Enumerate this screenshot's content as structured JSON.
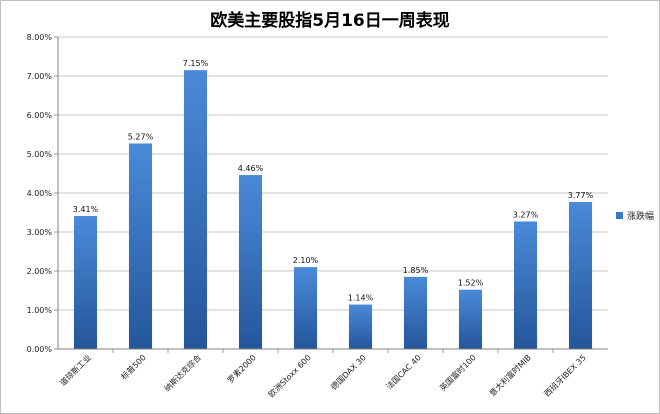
{
  "chart_data": {
    "type": "bar",
    "title": "欧美主要股指5月16日一周表现",
    "categories": [
      "道琼斯工业",
      "标普500",
      "纳斯达克综合",
      "罗素2000",
      "欧洲Stoxx 600",
      "德国DAX 30",
      "法国CAC 40",
      "英国富时100",
      "意大利富时MIB",
      "西班牙IBEX 35"
    ],
    "series": [
      {
        "name": "涨跌幅",
        "values": [
          3.41,
          5.27,
          7.15,
          4.46,
          2.1,
          1.14,
          1.85,
          1.52,
          3.27,
          3.77
        ],
        "value_labels": [
          "3.41%",
          "5.27%",
          "7.15%",
          "4.46%",
          "2.10%",
          "1.14%",
          "1.85%",
          "1.52%",
          "3.27%",
          "3.77%"
        ],
        "color": "#3a78c8"
      }
    ],
    "ylim": [
      0,
      8
    ],
    "yticks": [
      "0.00%",
      "1.00%",
      "2.00%",
      "3.00%",
      "4.00%",
      "5.00%",
      "6.00%",
      "7.00%",
      "8.00%"
    ],
    "grid": true,
    "legend": "right",
    "xlabel": "",
    "ylabel": ""
  },
  "colors": {
    "bar_top": "#4a8ad8",
    "bar_bottom": "#25569a",
    "grid": "#b8b8b8",
    "axis": "#808080"
  }
}
